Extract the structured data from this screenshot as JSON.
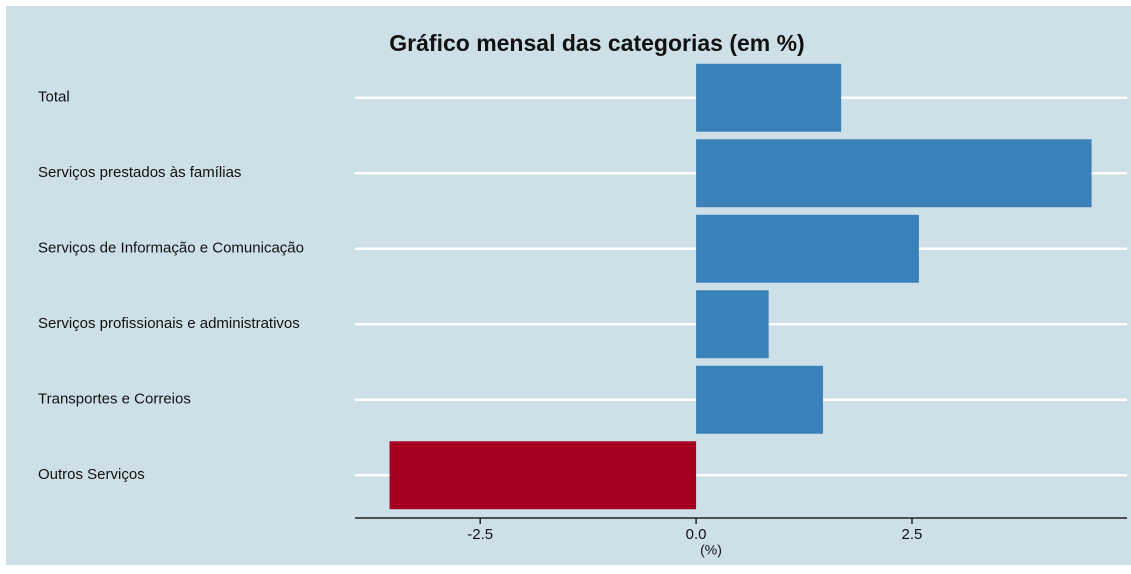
{
  "chart_data": {
    "type": "bar",
    "orientation": "horizontal",
    "title": "Gráfico mensal das categorias (em %)",
    "x_label": "(%)",
    "categories": [
      "Total",
      "Serviços prestados às famílias",
      "Serviços de Informação e Comunicação",
      "Serviços profissionais e administrativos",
      "Transportes e Correios",
      "Outros Serviços"
    ],
    "values": [
      1.68,
      4.58,
      2.58,
      0.84,
      1.47,
      -3.55
    ],
    "colors": [
      "#3a80b9",
      "#3a80b9",
      "#3a80b9",
      "#3a80b9",
      "#3a80b9",
      "#a50021"
    ],
    "xlim": [
      -3.95,
      4.99
    ],
    "xticks": [
      -2.5,
      {
        "value": 0,
        "label": "0.0"
      },
      2.5
    ],
    "grid": true
  }
}
